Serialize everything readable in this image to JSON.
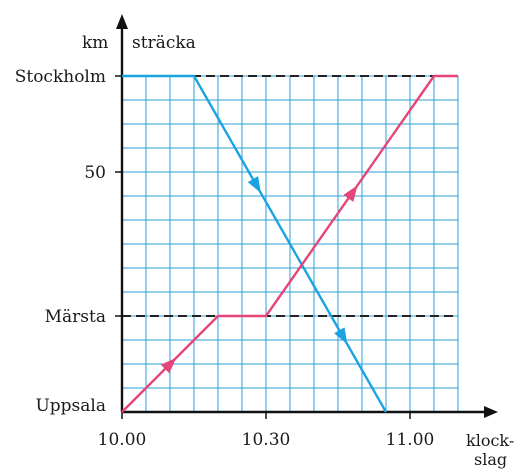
{
  "chart_data": {
    "type": "line",
    "y_unit": "km",
    "y_title": "sträcka",
    "x_title": [
      "klock-",
      "slag"
    ],
    "x_ticks": [
      {
        "minutes": 0,
        "label": "10.00"
      },
      {
        "minutes": 30,
        "label": "10.30"
      },
      {
        "minutes": 60,
        "label": "11.00"
      }
    ],
    "y_ticks": [
      {
        "km": 0,
        "label": "Uppsala"
      },
      {
        "km": 20,
        "label": "Märsta"
      },
      {
        "km": 50,
        "label": "50"
      },
      {
        "km": 70,
        "label": "Stockholm"
      }
    ],
    "reference_lines_km": [
      20,
      70
    ],
    "xlim": [
      0,
      70
    ],
    "ylim": [
      0,
      70
    ],
    "series": [
      {
        "color": "#1aa3e0",
        "points": [
          [
            0,
            70
          ],
          [
            15,
            70
          ],
          [
            55,
            0
          ]
        ],
        "arrows": [
          [
            28,
            47.25
          ],
          [
            46,
            15.75
          ]
        ]
      },
      {
        "color": "#e6457a",
        "points": [
          [
            0,
            0
          ],
          [
            20,
            20
          ],
          [
            30,
            20
          ],
          [
            65,
            70
          ],
          [
            70,
            70
          ]
        ],
        "arrows": [
          [
            10,
            10
          ],
          [
            48,
            45.7
          ]
        ]
      }
    ]
  },
  "colors": {
    "grid": "#2b9fd6",
    "axis": "#111111",
    "reference": "#222222"
  }
}
